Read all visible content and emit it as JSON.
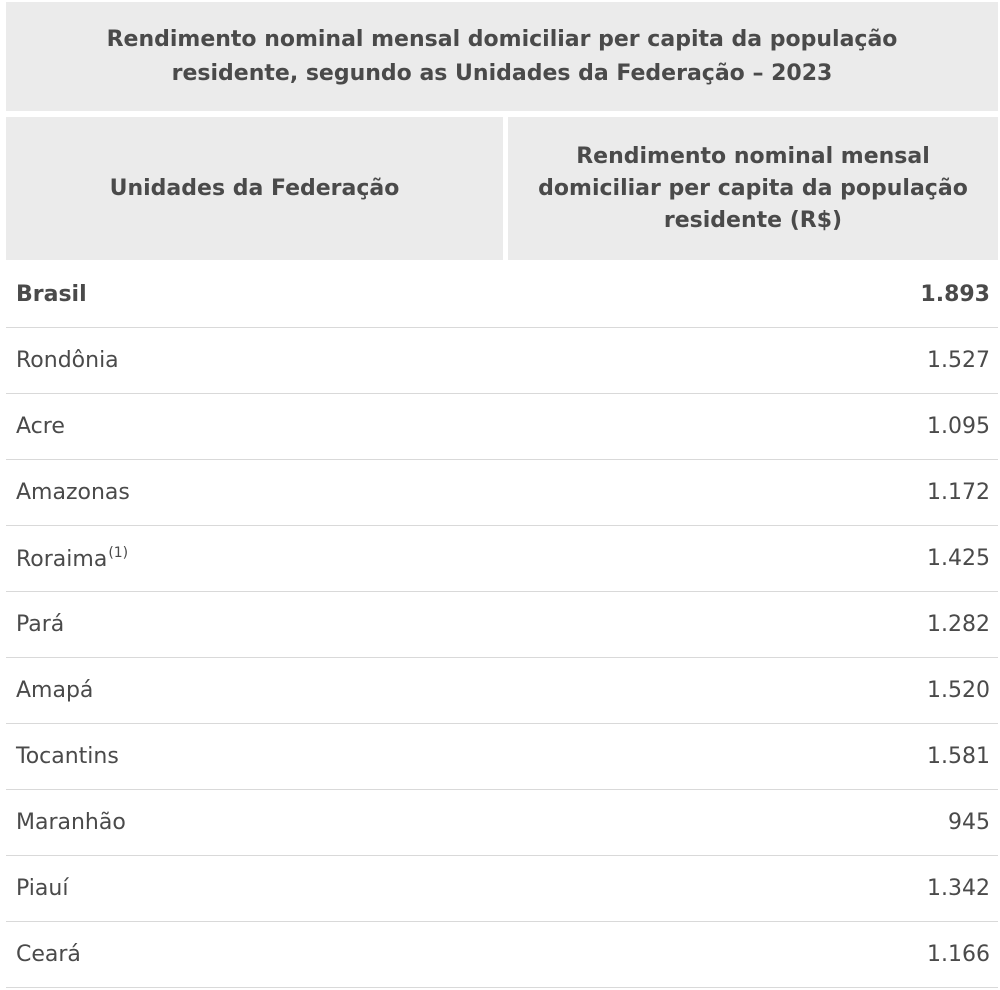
{
  "table": {
    "caption": "Rendimento nominal mensal domiciliar per capita da população residente, segundo as Unidades da Federação – 2023",
    "col_headers": {
      "uf": "Unidades da Federação",
      "value": "Rendimento nominal mensal domiciliar per capita da população residente (R$)"
    },
    "rows": [
      {
        "uf": "Brasil",
        "note": "",
        "value": "1.893"
      },
      {
        "uf": "Rondônia",
        "note": "",
        "value": "1.527"
      },
      {
        "uf": "Acre",
        "note": "",
        "value": "1.095"
      },
      {
        "uf": "Amazonas",
        "note": "",
        "value": "1.172"
      },
      {
        "uf": "Roraima",
        "note": "(1)",
        "value": "1.425"
      },
      {
        "uf": "Pará",
        "note": "",
        "value": "1.282"
      },
      {
        "uf": "Amapá",
        "note": "",
        "value": "1.520"
      },
      {
        "uf": "Tocantins",
        "note": "",
        "value": "1.581"
      },
      {
        "uf": "Maranhão",
        "note": "",
        "value": "945"
      },
      {
        "uf": "Piauí",
        "note": "",
        "value": "1.342"
      },
      {
        "uf": "Ceará",
        "note": "",
        "value": "1.166"
      }
    ]
  }
}
